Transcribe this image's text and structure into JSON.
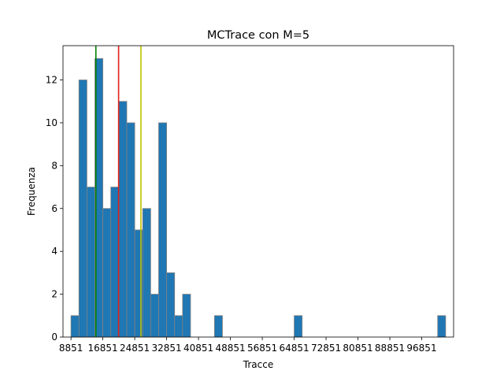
{
  "chart_data": {
    "type": "bar",
    "title": "MCTrace con M=5",
    "xlabel": "Tracce",
    "ylabel": "Frequenza",
    "xlim": [
      6851,
      104851
    ],
    "ylim": [
      0,
      13.6
    ],
    "bin_width": 2000,
    "bins": [
      {
        "x0": 8851,
        "x1": 10851,
        "count": 1
      },
      {
        "x0": 10851,
        "x1": 12851,
        "count": 12
      },
      {
        "x0": 12851,
        "x1": 14851,
        "count": 7
      },
      {
        "x0": 14851,
        "x1": 16851,
        "count": 13
      },
      {
        "x0": 16851,
        "x1": 18851,
        "count": 6
      },
      {
        "x0": 18851,
        "x1": 20851,
        "count": 7
      },
      {
        "x0": 20851,
        "x1": 22851,
        "count": 11
      },
      {
        "x0": 22851,
        "x1": 24851,
        "count": 10
      },
      {
        "x0": 24851,
        "x1": 26851,
        "count": 5
      },
      {
        "x0": 26851,
        "x1": 28851,
        "count": 6
      },
      {
        "x0": 28851,
        "x1": 30851,
        "count": 2
      },
      {
        "x0": 30851,
        "x1": 32851,
        "count": 10
      },
      {
        "x0": 32851,
        "x1": 34851,
        "count": 3
      },
      {
        "x0": 34851,
        "x1": 36851,
        "count": 1
      },
      {
        "x0": 36851,
        "x1": 38851,
        "count": 2
      },
      {
        "x0": 44851,
        "x1": 46851,
        "count": 1
      },
      {
        "x0": 64851,
        "x1": 66851,
        "count": 1
      },
      {
        "x0": 100851,
        "x1": 102851,
        "count": 1
      }
    ],
    "xticks": [
      8851,
      16851,
      24851,
      32851,
      40851,
      48851,
      56851,
      64851,
      72851,
      80851,
      88851,
      96851
    ],
    "xtick_labels": [
      "8851",
      "16851",
      "24851",
      "32851",
      "40851",
      "48851",
      "56851",
      "64851",
      "72851",
      "80851",
      "88851",
      "96851"
    ],
    "yticks": [
      0,
      2,
      4,
      6,
      8,
      10,
      12
    ],
    "ytick_labels": [
      "0",
      "2",
      "4",
      "6",
      "8",
      "10",
      "12"
    ],
    "vlines": [
      {
        "x": 15100,
        "color": "#008000"
      },
      {
        "x": 20800,
        "color": "#e0201b"
      },
      {
        "x": 26400,
        "color": "#bfbf00"
      }
    ],
    "bar_color": "#1f77b4",
    "bar_edge_color": "#808080",
    "grid": false
  }
}
